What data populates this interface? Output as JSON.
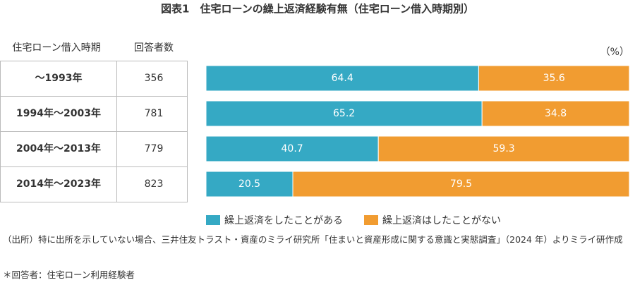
{
  "chart_data": {
    "type": "bar-stacked-horizontal",
    "title": "図表1　住宅ローンの繰上返済経験有無（住宅ローン借入時期別）",
    "table_headers": [
      "住宅ローン借入時期",
      "回答者数"
    ],
    "categories": [
      "～1993年",
      "1994年～2003年",
      "2004年～2013年",
      "2014年～2023年"
    ],
    "respondents": [
      356,
      781,
      779,
      823
    ],
    "unit_label": "（%）",
    "xlim": [
      0,
      100
    ],
    "series": [
      {
        "name": "繰上返済をしたことがある",
        "color": "#35a9c4",
        "values": [
          64.4,
          65.2,
          40.7,
          20.5
        ]
      },
      {
        "name": "繰上返済はしたことがない",
        "color": "#f19c31",
        "values": [
          35.6,
          34.8,
          59.3,
          79.5
        ]
      }
    ],
    "notes": [
      "（出所）特に出所を示していない場合、三井住友トラスト・資産のミライ研究所「住まいと資産形成に関する意識と実態調査」（2024 年）よりミライ研作成",
      "＊回答者：住宅ローン利用経験者"
    ]
  }
}
